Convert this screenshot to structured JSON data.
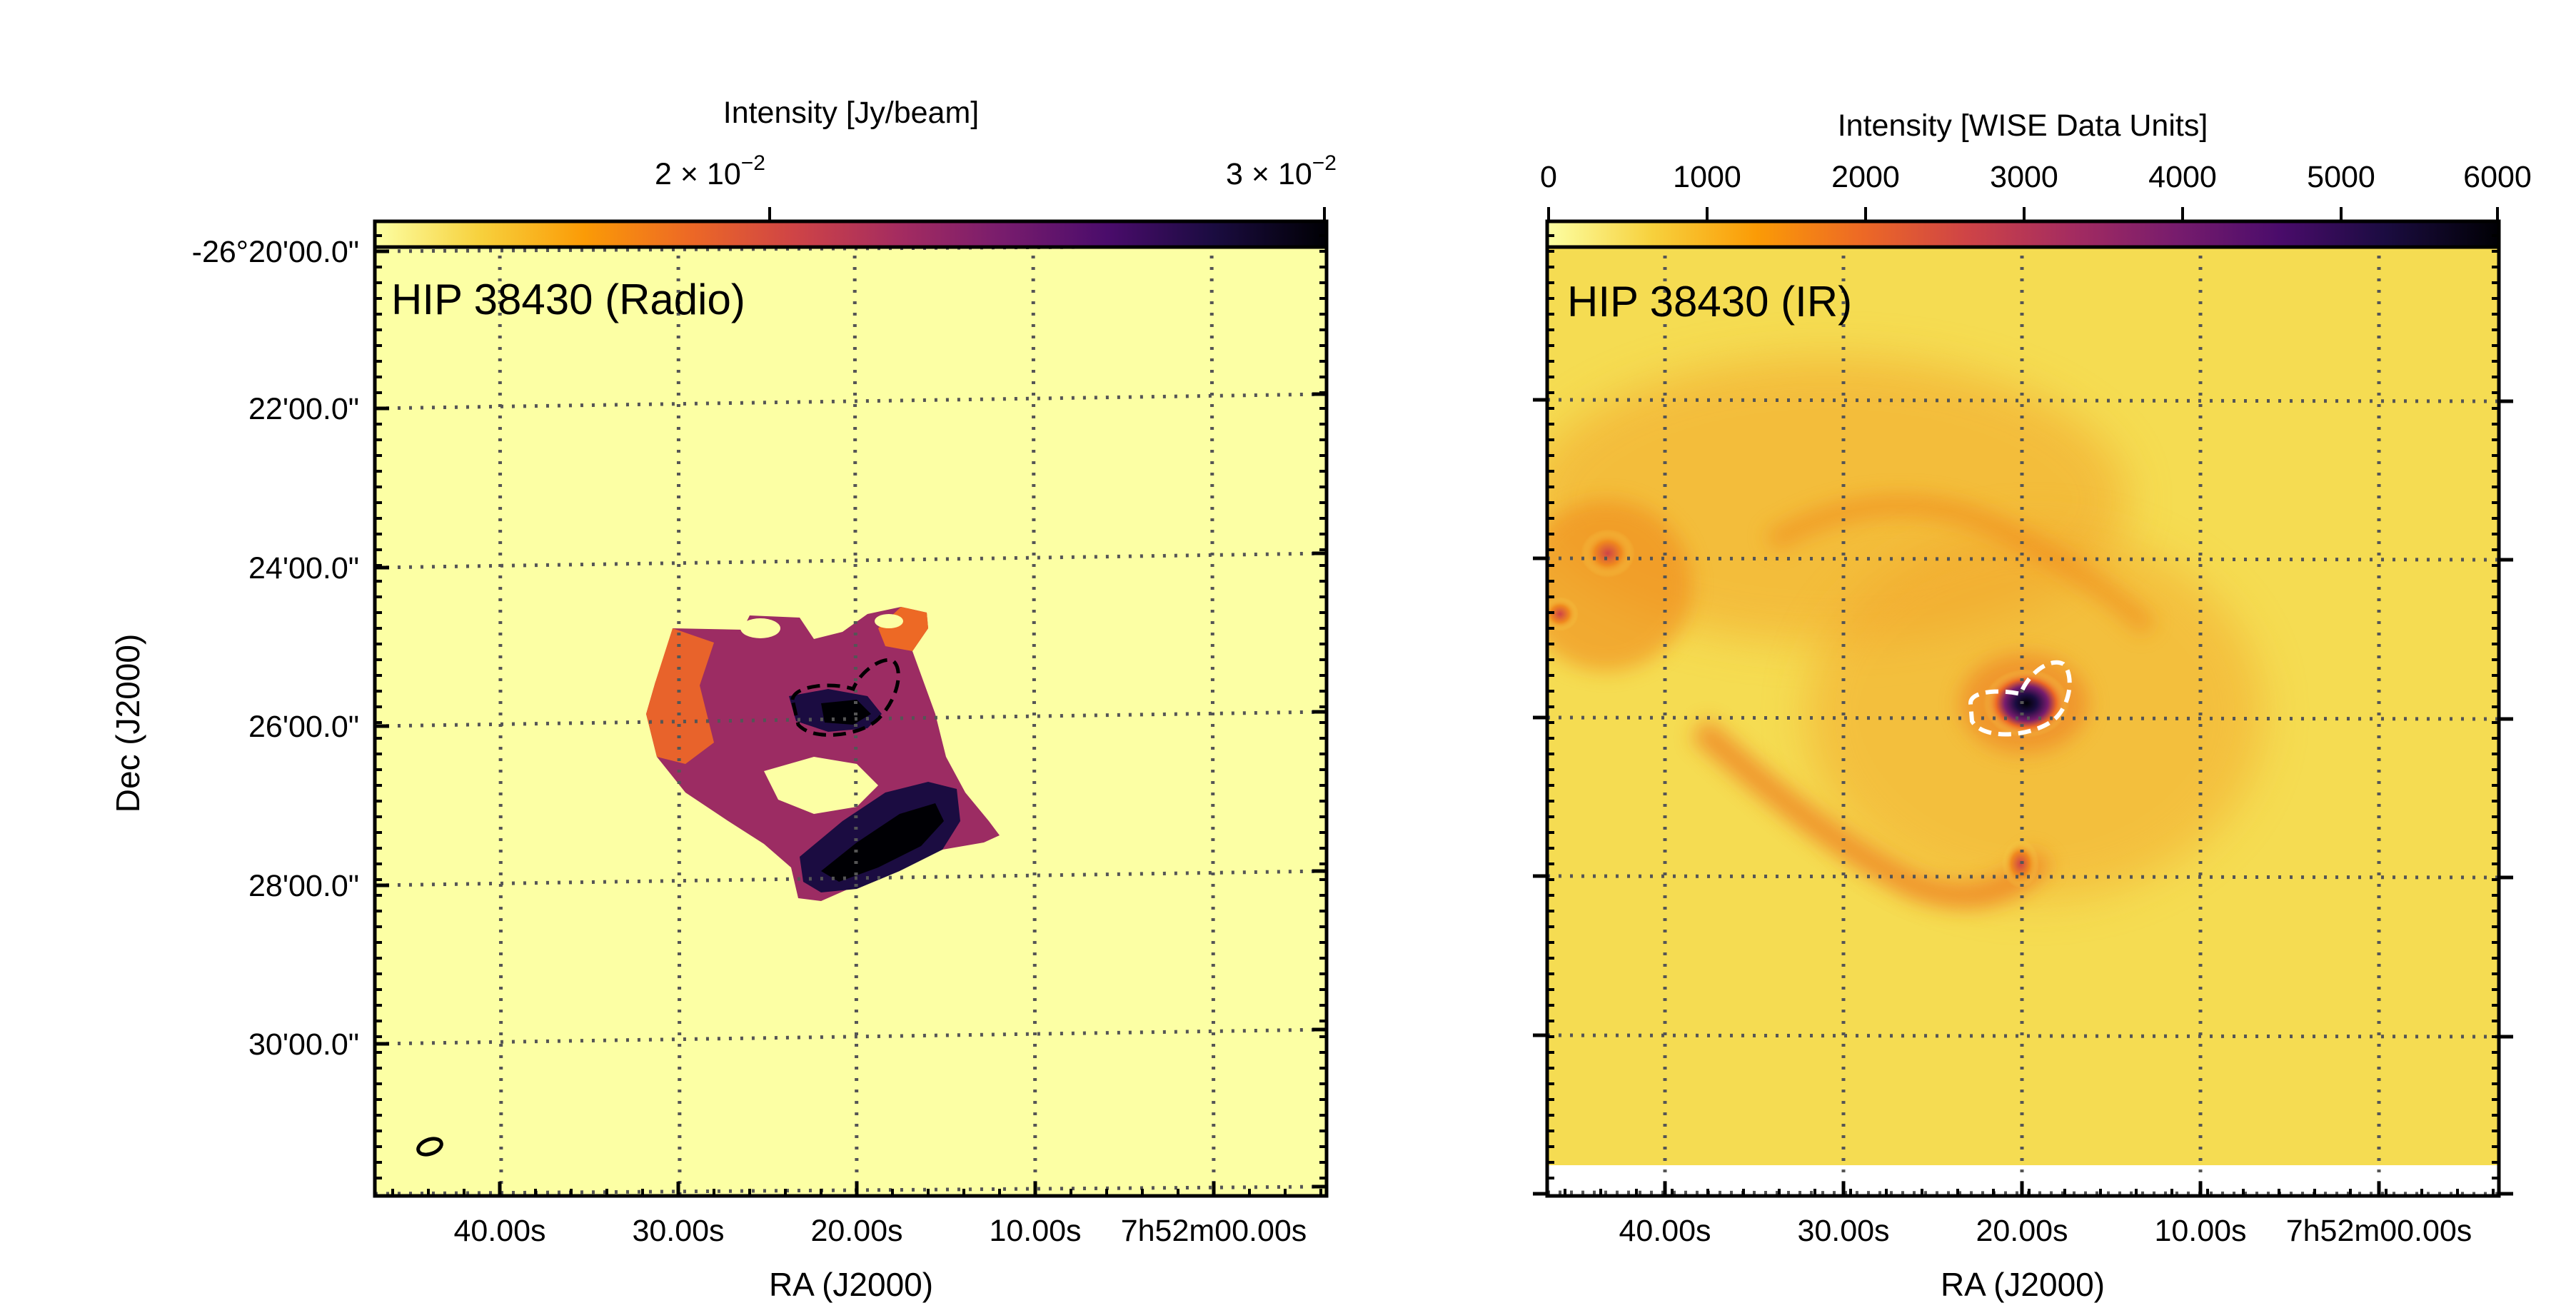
{
  "chart_data": [
    {
      "type": "heatmap",
      "title": "HIP 38430 (Radio)",
      "xlabel": "RA (J2000)",
      "ylabel": "Dec (J2000)",
      "colorbar": {
        "label": "Intensity [Jy/beam]",
        "scale": "log",
        "ticks": [
          {
            "value": 0.02,
            "base": "2 × 10",
            "exp": "−2"
          },
          {
            "value": 0.03,
            "base": "3 × 10",
            "exp": "−2"
          }
        ],
        "colormap": "inferno_r",
        "range": [
          0.0095,
          0.03
        ]
      },
      "xticks": [
        "40.00s",
        "30.00s",
        "20.00s",
        "10.00s",
        "7h52m00.00s"
      ],
      "yticks": [
        "-26°20'00.0\"",
        "22'00.0\"",
        "24'00.0\"",
        "26'00.0\"",
        "28'00.0\"",
        "30'00.0\""
      ],
      "grid": true,
      "features": [
        {
          "name": "extended emission",
          "level": 0.45
        },
        {
          "name": "southern lobe",
          "level": 0.95
        },
        {
          "name": "dashed contour source",
          "level": 0.9
        }
      ],
      "beam": "ellipse bottom-left"
    },
    {
      "type": "heatmap",
      "title": "HIP 38430 (IR)",
      "xlabel": "RA (J2000)",
      "ylabel": "",
      "colorbar": {
        "label": "Intensity [WISE Data Units]",
        "scale": "linear",
        "ticks": [
          "0",
          "1000",
          "2000",
          "3000",
          "4000",
          "5000",
          "6000"
        ],
        "range": [
          0,
          6000
        ],
        "colormap": "inferno_r"
      },
      "xticks": [
        "40.00s",
        "30.00s",
        "20.00s",
        "10.00s",
        "7h52m00.00s"
      ],
      "grid": true,
      "features": [
        {
          "name": "background",
          "level": 0.12
        },
        {
          "name": "bow shock arc",
          "level": 0.28
        },
        {
          "name": "central source",
          "level": 1.0
        }
      ]
    }
  ],
  "colors": {
    "cmap": [
      "#fcffa4",
      "#f7d13d",
      "#fb9b06",
      "#ed6925",
      "#cf4446",
      "#a52c60",
      "#781c6d",
      "#4a0c6b",
      "#1b0c41",
      "#000004"
    ],
    "ir_background": "#f5dc52",
    "grid": "#555555"
  }
}
